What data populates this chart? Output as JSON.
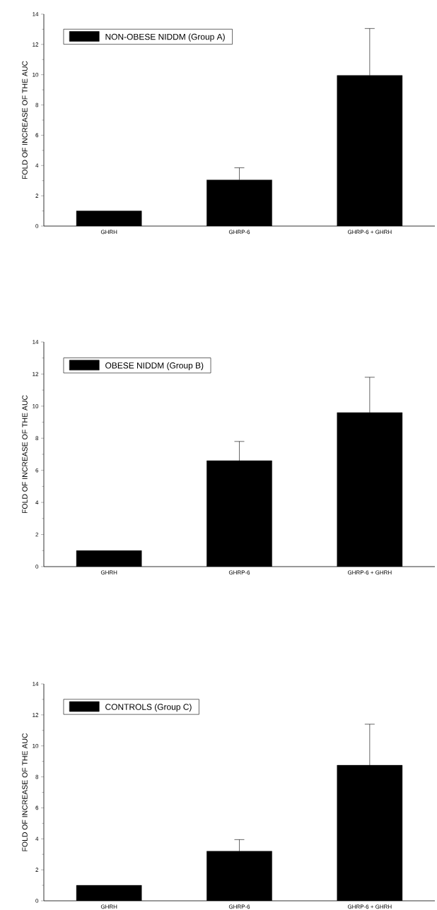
{
  "chart_data": [
    {
      "type": "bar",
      "categories": [
        "GHRH",
        "GHRP-6",
        "GHRP-6 + GHRH"
      ],
      "ylabel": "FOLD OF INCREASE OF THE AUC",
      "series": [
        {
          "name": "NON-OBESE NIDDM (Group A)",
          "color": "#000000",
          "values": [
            1,
            3.05,
            9.95
          ],
          "errors": [
            null,
            [
              3.05,
              3.85
            ],
            [
              9.95,
              13.05
            ]
          ]
        }
      ],
      "ylim": [
        0,
        14
      ],
      "yticks": [
        0,
        2,
        4,
        6,
        8,
        10,
        12,
        14
      ],
      "legend": "top left"
    },
    {
      "type": "bar",
      "categories": [
        "GHRH",
        "GHRP-6",
        "GHRP-6 + GHRH"
      ],
      "ylabel": "FOLD OF INCREASE OF THE AUC",
      "series": [
        {
          "name": "OBESE NIDDM (Group B)",
          "color": "#000000",
          "values": [
            1,
            6.6,
            9.6
          ],
          "errors": [
            null,
            [
              6.6,
              7.8
            ],
            [
              9.6,
              11.8
            ]
          ]
        }
      ],
      "ylim": [
        0,
        14
      ],
      "yticks": [
        0,
        2,
        4,
        6,
        8,
        10,
        12,
        14
      ],
      "legend": "top left"
    },
    {
      "type": "bar",
      "categories": [
        "GHRH",
        "GHRP-6",
        "GHRP-6 + GHRH"
      ],
      "ylabel": "FOLD OF INCREASE OF THE AUC",
      "series": [
        {
          "name": "CONTROLS (Group C)",
          "color": "#000000",
          "values": [
            1,
            3.2,
            8.75
          ],
          "errors": [
            null,
            [
              3.2,
              3.95
            ],
            [
              8.75,
              11.4
            ]
          ]
        }
      ],
      "ylim": [
        0,
        14
      ],
      "yticks": [
        0,
        2,
        4,
        6,
        8,
        10,
        12,
        14
      ],
      "legend": "top left"
    }
  ]
}
